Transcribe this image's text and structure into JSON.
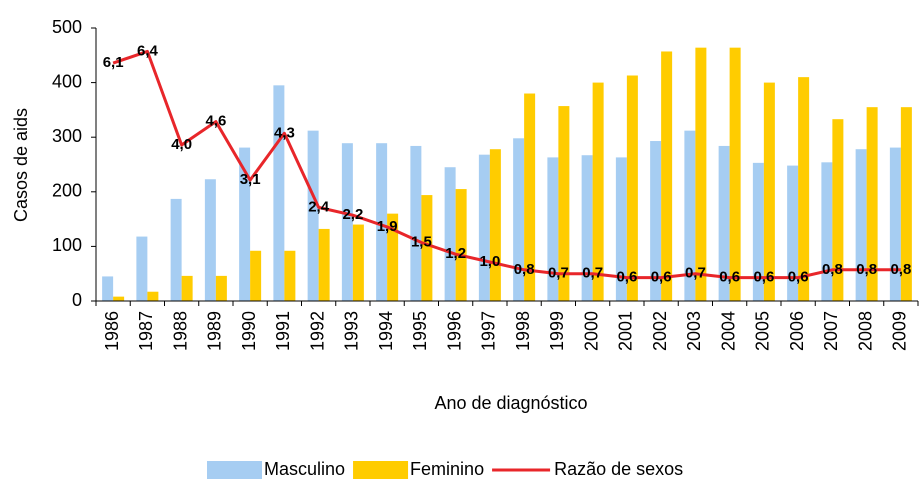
{
  "chart_data": {
    "type": "bar_line",
    "y_label": "Casos de aids",
    "x_label": "Ano de diagnóstico",
    "categories": [
      "1986",
      "1987",
      "1988",
      "1989",
      "1990",
      "1991",
      "1992",
      "1993",
      "1994",
      "1995",
      "1996",
      "1997",
      "1998",
      "1999",
      "2000",
      "2001",
      "2002",
      "2003",
      "2004",
      "2005",
      "2006",
      "2007",
      "2008",
      "2009"
    ],
    "series": [
      {
        "name": "Masculino",
        "color": "#a6cdf2",
        "type": "bar",
        "values": [
          45,
          118,
          187,
          223,
          281,
          395,
          312,
          289,
          289,
          284,
          245,
          268,
          298,
          263,
          267,
          263,
          293,
          312,
          284,
          253,
          248,
          254,
          278,
          281
        ]
      },
      {
        "name": "Feminino",
        "color": "#ffcc00",
        "type": "bar",
        "values": [
          8,
          17,
          46,
          46,
          92,
          92,
          132,
          140,
          160,
          194,
          205,
          278,
          380,
          357,
          400,
          413,
          457,
          464,
          464,
          400,
          410,
          333,
          355,
          355
        ]
      },
      {
        "name": "Razão de sexos",
        "color": "#e8262a",
        "type": "line",
        "axis": "y2",
        "values": [
          6.1,
          6.4,
          4.0,
          4.6,
          3.1,
          4.3,
          2.4,
          2.2,
          1.9,
          1.5,
          1.2,
          1.0,
          0.8,
          0.7,
          0.7,
          0.6,
          0.6,
          0.7,
          0.6,
          0.6,
          0.6,
          0.8,
          0.8,
          0.8
        ],
        "value_labels": [
          "6,1",
          "6,4",
          "4,0",
          "4,6",
          "3,1",
          "4,3",
          "2,4",
          "2,2",
          "1,9",
          "1,5",
          "1,2",
          "1,0",
          "0,8",
          "0,7",
          "0,7",
          "0,6",
          "0,6",
          "0,7",
          "0,6",
          "0,6",
          "0,6",
          "0,8",
          "0,8",
          "0,8"
        ]
      }
    ],
    "ylim": [
      0,
      500
    ],
    "yticks": [
      0,
      100,
      200,
      300,
      400,
      500
    ],
    "y2lim": [
      0,
      7
    ],
    "grid": false
  }
}
